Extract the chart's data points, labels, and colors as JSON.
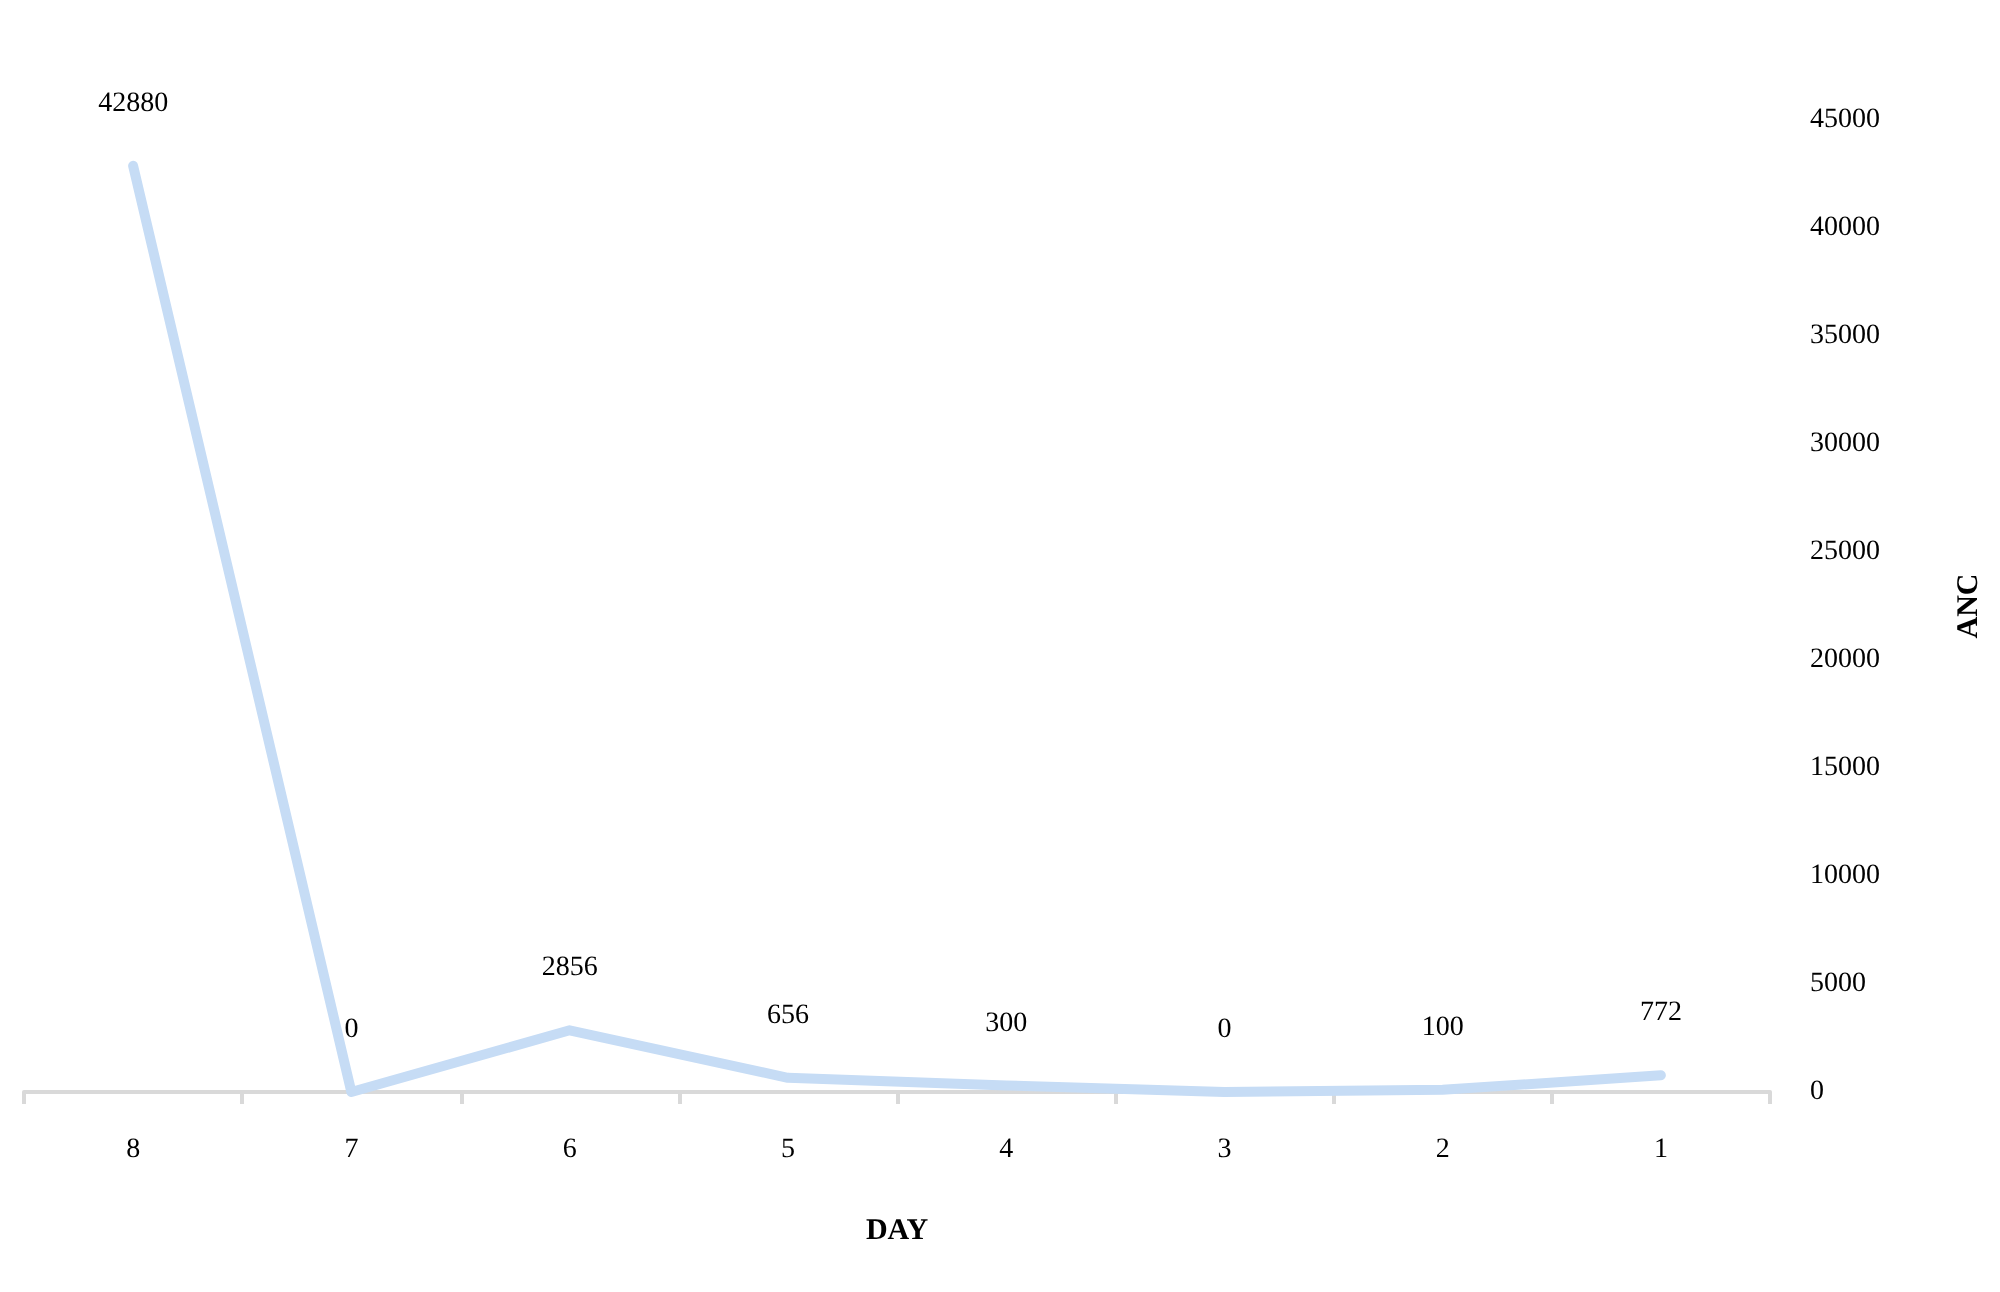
{
  "chart_data": {
    "type": "line",
    "xlabel": "DAY",
    "ylabel": "ANC",
    "categories": [
      "8",
      "7",
      "6",
      "5",
      "4",
      "3",
      "2",
      "1"
    ],
    "series": [
      {
        "color": "#c6dcf5",
        "values": [
          42880,
          0,
          2856,
          656,
          300,
          0,
          100,
          772
        ]
      }
    ],
    "ylim": [
      0,
      45000
    ],
    "yticks": [
      0,
      5000,
      10000,
      15000,
      20000,
      25000,
      30000,
      35000,
      40000,
      45000
    ],
    "data_labels": true,
    "grid": false,
    "marker": "none",
    "line_style": "solid"
  }
}
